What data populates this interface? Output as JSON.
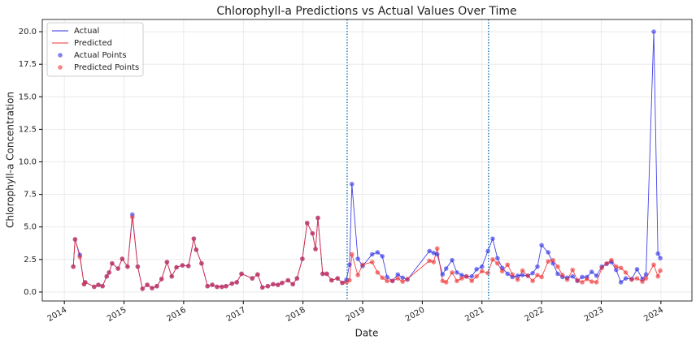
{
  "chart_data": {
    "type": "line",
    "title": "Chlorophyll-a Predictions vs Actual Values Over Time",
    "xlabel": "Date",
    "ylabel": "Chlorophyll-a Concentration",
    "x": [
      2014.15,
      2014.18,
      2014.26,
      2014.33,
      2014.35,
      2014.5,
      2014.57,
      2014.64,
      2014.71,
      2014.75,
      2014.8,
      2014.9,
      2014.97,
      2015.06,
      2015.14,
      2015.23,
      2015.31,
      2015.39,
      2015.47,
      2015.55,
      2015.63,
      2015.72,
      2015.8,
      2015.88,
      2015.98,
      2016.08,
      2016.17,
      2016.21,
      2016.3,
      2016.4,
      2016.48,
      2016.56,
      2016.64,
      2016.71,
      2016.81,
      2016.89,
      2016.97,
      2017.15,
      2017.24,
      2017.32,
      2017.41,
      2017.5,
      2017.58,
      2017.65,
      2017.75,
      2017.83,
      2017.9,
      2017.99,
      2018.07,
      2018.16,
      2018.21,
      2018.25,
      2018.33,
      2018.4,
      2018.48,
      2018.58,
      2018.66,
      2018.73,
      2018.78,
      2018.82,
      2018.92,
      2019.0,
      2019.16,
      2019.25,
      2019.33,
      2019.41,
      2019.5,
      2019.59,
      2019.67,
      2019.75,
      2020.12,
      2020.19,
      2020.25,
      2020.34,
      2020.4,
      2020.5,
      2020.58,
      2020.66,
      2020.74,
      2020.83,
      2020.91,
      2021.0,
      2021.1,
      2021.18,
      2021.26,
      2021.34,
      2021.43,
      2021.51,
      2021.6,
      2021.68,
      2021.77,
      2021.85,
      2021.93,
      2022.0,
      2022.11,
      2022.19,
      2022.27,
      2022.35,
      2022.43,
      2022.52,
      2022.6,
      2022.68,
      2022.76,
      2022.84,
      2022.92,
      2023.01,
      2023.09,
      2023.17,
      2023.25,
      2023.33,
      2023.41,
      2023.51,
      2023.6,
      2023.69,
      2023.75,
      2023.88,
      2023.95,
      2023.99
    ],
    "series": [
      {
        "name": "Actual",
        "points_name": "Actual Points",
        "color": "#2f2fe6",
        "values": [
          1.95,
          4.05,
          2.85,
          0.6,
          0.75,
          0.4,
          0.55,
          0.45,
          1.2,
          1.5,
          2.2,
          1.8,
          2.55,
          1.95,
          5.95,
          1.95,
          0.25,
          0.55,
          0.3,
          0.45,
          1.0,
          2.3,
          1.2,
          1.9,
          2.05,
          2.0,
          4.1,
          3.25,
          2.2,
          0.45,
          0.55,
          0.4,
          0.4,
          0.45,
          0.65,
          0.75,
          1.4,
          1.05,
          1.35,
          0.35,
          0.45,
          0.6,
          0.55,
          0.7,
          0.9,
          0.6,
          1.05,
          2.55,
          5.3,
          4.5,
          3.3,
          5.7,
          1.4,
          1.4,
          0.9,
          1.05,
          0.7,
          0.95,
          2.1,
          8.3,
          2.55,
          2.0,
          2.9,
          3.05,
          2.75,
          1.15,
          0.85,
          1.35,
          1.1,
          0.95,
          3.15,
          3.0,
          2.9,
          1.35,
          1.8,
          2.45,
          1.5,
          1.3,
          1.2,
          1.2,
          1.75,
          1.95,
          3.15,
          4.1,
          2.6,
          1.85,
          1.4,
          1.15,
          1.25,
          1.3,
          1.25,
          1.45,
          1.95,
          3.6,
          3.05,
          2.2,
          1.4,
          1.15,
          1.1,
          1.2,
          0.85,
          1.15,
          1.15,
          1.55,
          1.25,
          1.95,
          2.15,
          2.3,
          1.7,
          0.75,
          1.05,
          1.0,
          1.75,
          1.0,
          1.35,
          20.0,
          2.95,
          2.6
        ]
      },
      {
        "name": "Predicted",
        "points_name": "Predicted Points",
        "color": "#f03030",
        "values": [
          1.95,
          4.05,
          2.7,
          0.6,
          0.75,
          0.4,
          0.55,
          0.45,
          1.2,
          1.5,
          2.2,
          1.8,
          2.55,
          1.95,
          5.75,
          1.95,
          0.25,
          0.55,
          0.3,
          0.45,
          1.0,
          2.3,
          1.2,
          1.9,
          2.05,
          2.0,
          4.1,
          3.25,
          2.2,
          0.45,
          0.55,
          0.4,
          0.4,
          0.45,
          0.65,
          0.75,
          1.4,
          1.05,
          1.35,
          0.35,
          0.45,
          0.6,
          0.55,
          0.7,
          0.9,
          0.6,
          1.05,
          2.55,
          5.3,
          4.5,
          3.3,
          5.7,
          1.4,
          1.4,
          0.9,
          1.05,
          0.7,
          0.75,
          0.9,
          2.9,
          1.3,
          2.1,
          2.3,
          1.5,
          1.1,
          0.85,
          0.85,
          1.05,
          0.8,
          1.0,
          2.4,
          2.3,
          3.35,
          0.85,
          0.75,
          1.5,
          0.85,
          1.05,
          1.2,
          0.85,
          1.2,
          1.6,
          1.45,
          2.5,
          2.2,
          1.6,
          2.1,
          1.35,
          0.95,
          1.65,
          1.25,
          0.85,
          1.3,
          1.15,
          2.35,
          2.45,
          1.95,
          1.3,
          0.95,
          1.7,
          0.9,
          0.75,
          1.0,
          0.8,
          0.75,
          1.85,
          2.2,
          2.45,
          1.95,
          1.85,
          1.5,
          0.95,
          1.05,
          0.8,
          1.05,
          2.1,
          1.2,
          1.65
        ]
      }
    ],
    "vlines": [
      2018.74,
      2021.11
    ],
    "vline_color": "#1f77b4",
    "xlim": [
      2013.63,
      2024.52
    ],
    "ylim": [
      -0.69,
      20.94
    ],
    "xticks": [
      2014,
      2015,
      2016,
      2017,
      2018,
      2019,
      2020,
      2021,
      2022,
      2023,
      2024
    ],
    "yticks": [
      {
        "value": 0,
        "label": "0.0"
      },
      {
        "value": 2.5,
        "label": "2.5"
      },
      {
        "value": 5,
        "label": "5.0"
      },
      {
        "value": 7.5,
        "label": "7.5"
      },
      {
        "value": 10,
        "label": "10.0"
      },
      {
        "value": 12.5,
        "label": "12.5"
      },
      {
        "value": 15,
        "label": "15.0"
      },
      {
        "value": 17.5,
        "label": "17.5"
      },
      {
        "value": 20,
        "label": "20.0"
      }
    ],
    "grid": true,
    "legend": "upper-left"
  }
}
